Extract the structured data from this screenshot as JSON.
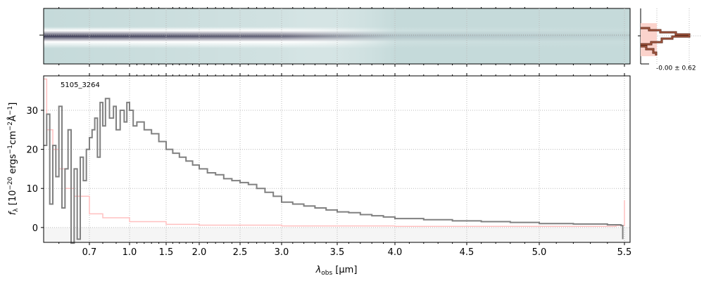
{
  "chart_data": {
    "type": "line",
    "object_label": "5105_3264",
    "xlabel": "λobs [μm]",
    "xlabel_main": "λ",
    "xlabel_sub": "obs",
    "xlabel_unit": " [μm]",
    "ylabel": "fλ [10^-20 ergs^-1cm^-2Å^-1]",
    "xlim": [
      0.55,
      5.52
    ],
    "ylim": [
      -3.8,
      38.8
    ],
    "x_ticks": [
      0.7,
      1.0,
      1.5,
      2.0,
      2.5,
      3.0,
      3.5,
      4.0,
      4.5,
      5.0,
      5.5
    ],
    "x_tick_labels": [
      "0.7",
      "1.0",
      "1.5",
      "2.0",
      "2.5",
      "3.0",
      "3.5",
      "4.0",
      "4.5",
      "5.0",
      "5.5"
    ],
    "y_ticks": [
      0,
      10,
      20,
      30
    ],
    "y_tick_labels": [
      "0",
      "10",
      "20",
      "30"
    ],
    "grid": true,
    "series": [
      {
        "name": "flux",
        "color": "#808080",
        "x": [
          0.55,
          0.56,
          0.57,
          0.58,
          0.59,
          0.6,
          0.61,
          0.62,
          0.63,
          0.64,
          0.65,
          0.66,
          0.67,
          0.68,
          0.69,
          0.7,
          0.72,
          0.74,
          0.76,
          0.78,
          0.8,
          0.82,
          0.85,
          0.88,
          0.9,
          0.93,
          0.96,
          0.98,
          1.0,
          1.05,
          1.1,
          1.2,
          1.3,
          1.4,
          1.5,
          1.6,
          1.7,
          1.8,
          1.9,
          2.0,
          2.1,
          2.2,
          2.3,
          2.4,
          2.5,
          2.6,
          2.7,
          2.8,
          2.9,
          3.0,
          3.1,
          3.2,
          3.3,
          3.4,
          3.5,
          3.6,
          3.7,
          3.8,
          3.9,
          4.0,
          4.2,
          4.4,
          4.6,
          4.8,
          5.0,
          5.2,
          5.4,
          5.48,
          5.49
        ],
        "y": [
          21,
          29,
          6,
          21,
          13,
          31,
          5,
          15,
          25,
          -4,
          15,
          -3,
          18,
          12,
          20,
          23,
          25,
          28,
          18,
          32,
          26,
          33,
          28,
          31,
          25,
          30,
          27,
          32,
          30,
          26,
          27,
          25,
          24,
          22,
          20,
          19,
          18,
          17,
          16,
          15,
          14,
          13.5,
          12.5,
          12,
          11.5,
          11,
          10,
          9,
          8,
          6.5,
          6,
          5.5,
          5,
          4.5,
          4,
          3.8,
          3.3,
          3,
          2.7,
          2.3,
          2.0,
          1.7,
          1.5,
          1.3,
          1.0,
          0.9,
          0.7,
          0.5,
          -3
        ]
      },
      {
        "name": "error",
        "color": "#ffc0c0",
        "x": [
          0.55,
          0.56,
          0.58,
          0.6,
          0.62,
          0.65,
          0.7,
          0.8,
          1.0,
          1.5,
          2.0,
          3.0,
          4.0,
          5.0,
          5.45,
          5.5
        ],
        "y": [
          38,
          25,
          20,
          15,
          10,
          8,
          3.5,
          2.5,
          1.5,
          0.8,
          0.6,
          0.4,
          0.3,
          0.3,
          0.5,
          7
        ]
      }
    ]
  },
  "side_panel": {
    "stat_label": "-0.00 ± 0.62"
  }
}
